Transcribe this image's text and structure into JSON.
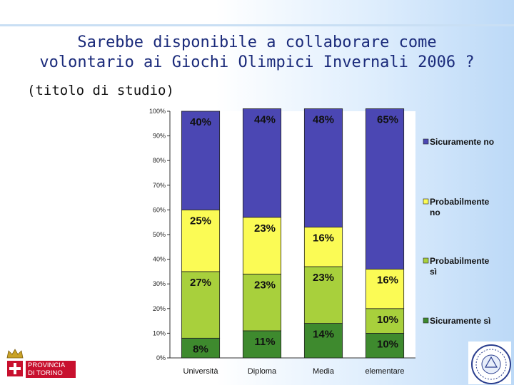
{
  "title_lines": [
    "Sarebbe disponibile a collaborare come",
    "volontario ai Giochi Olimpici Invernali 2006 ?"
  ],
  "subtitle": "(titolo di studio)",
  "logo_text_lines": [
    "PROVINCIA",
    "DI TORINO"
  ],
  "colors": {
    "sicuramente_no": "#4b47b3",
    "probabilmente_no": "#fbfb55",
    "probabilmente_si": "#a8d03c",
    "sicuramente_si": "#3e8a2e"
  },
  "chart_data": {
    "type": "bar",
    "stacked": true,
    "categories": [
      "Università",
      "Diploma",
      "Media",
      "elementare"
    ],
    "series": [
      {
        "name": "Sicuramente sì",
        "values": [
          8,
          11,
          14,
          10
        ],
        "labels": [
          "8%",
          "11%",
          "14%",
          "10%"
        ],
        "color": "#3e8a2e"
      },
      {
        "name": "Probabilmente sì",
        "values": [
          27,
          23,
          23,
          10
        ],
        "labels": [
          "27%",
          "23%",
          "23%",
          "10%"
        ],
        "color": "#a8d03c"
      },
      {
        "name": "Probabilmente no",
        "values": [
          25,
          23,
          16,
          16
        ],
        "labels": [
          "25%",
          "23%",
          "16%",
          "16%"
        ],
        "color": "#fbfb55"
      },
      {
        "name": "Sicuramente no",
        "values": [
          40,
          44,
          48,
          65
        ],
        "labels": [
          "40%",
          "44%",
          "48%",
          "65%"
        ],
        "color": "#4b47b3"
      }
    ],
    "y_ticks": [
      "0%",
      "10%",
      "20%",
      "30%",
      "40%",
      "50%",
      "60%",
      "70%",
      "80%",
      "90%",
      "100%"
    ],
    "ylim": [
      0,
      100
    ],
    "legend": {
      "position": "right",
      "entries": [
        {
          "label_lines": [
            "Sicuramente no"
          ],
          "color": "#4b47b3"
        },
        {
          "label_lines": [
            "Probabilmente",
            "no"
          ],
          "color": "#fbfb55"
        },
        {
          "label_lines": [
            "Probabilmente",
            "sì"
          ],
          "color": "#a8d03c"
        },
        {
          "label_lines": [
            "Sicuramente sì"
          ],
          "color": "#3e8a2e"
        }
      ]
    }
  }
}
